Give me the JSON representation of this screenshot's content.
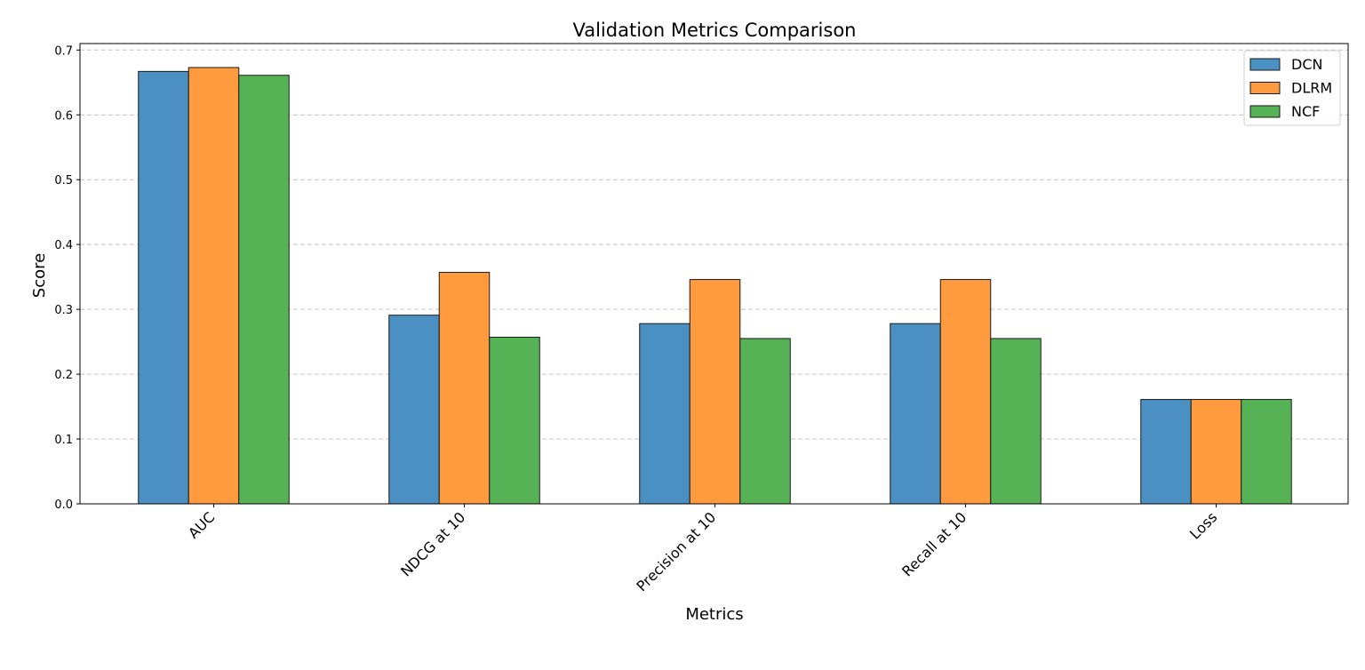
{
  "chart_data": {
    "type": "bar",
    "title": "Validation Metrics Comparison",
    "xlabel": "Metrics",
    "ylabel": "Score",
    "categories": [
      "AUC",
      "NDCG at 10",
      "Precision at 10",
      "Recall at 10",
      "Loss"
    ],
    "series": [
      {
        "name": "DCN",
        "color": "#4a90c2",
        "values": [
          0.667,
          0.291,
          0.278,
          0.278,
          0.161
        ]
      },
      {
        "name": "DLRM",
        "color": "#ff9a3f",
        "values": [
          0.673,
          0.357,
          0.346,
          0.346,
          0.161
        ]
      },
      {
        "name": "NCF",
        "color": "#55b356",
        "values": [
          0.661,
          0.257,
          0.255,
          0.255,
          0.161
        ]
      }
    ],
    "ylim": [
      0,
      0.71
    ],
    "yticks": [
      "0.0",
      "0.1",
      "0.2",
      "0.3",
      "0.4",
      "0.5",
      "0.6",
      "0.7"
    ],
    "grid": "y-dashed",
    "legend_position": "top-right"
  }
}
